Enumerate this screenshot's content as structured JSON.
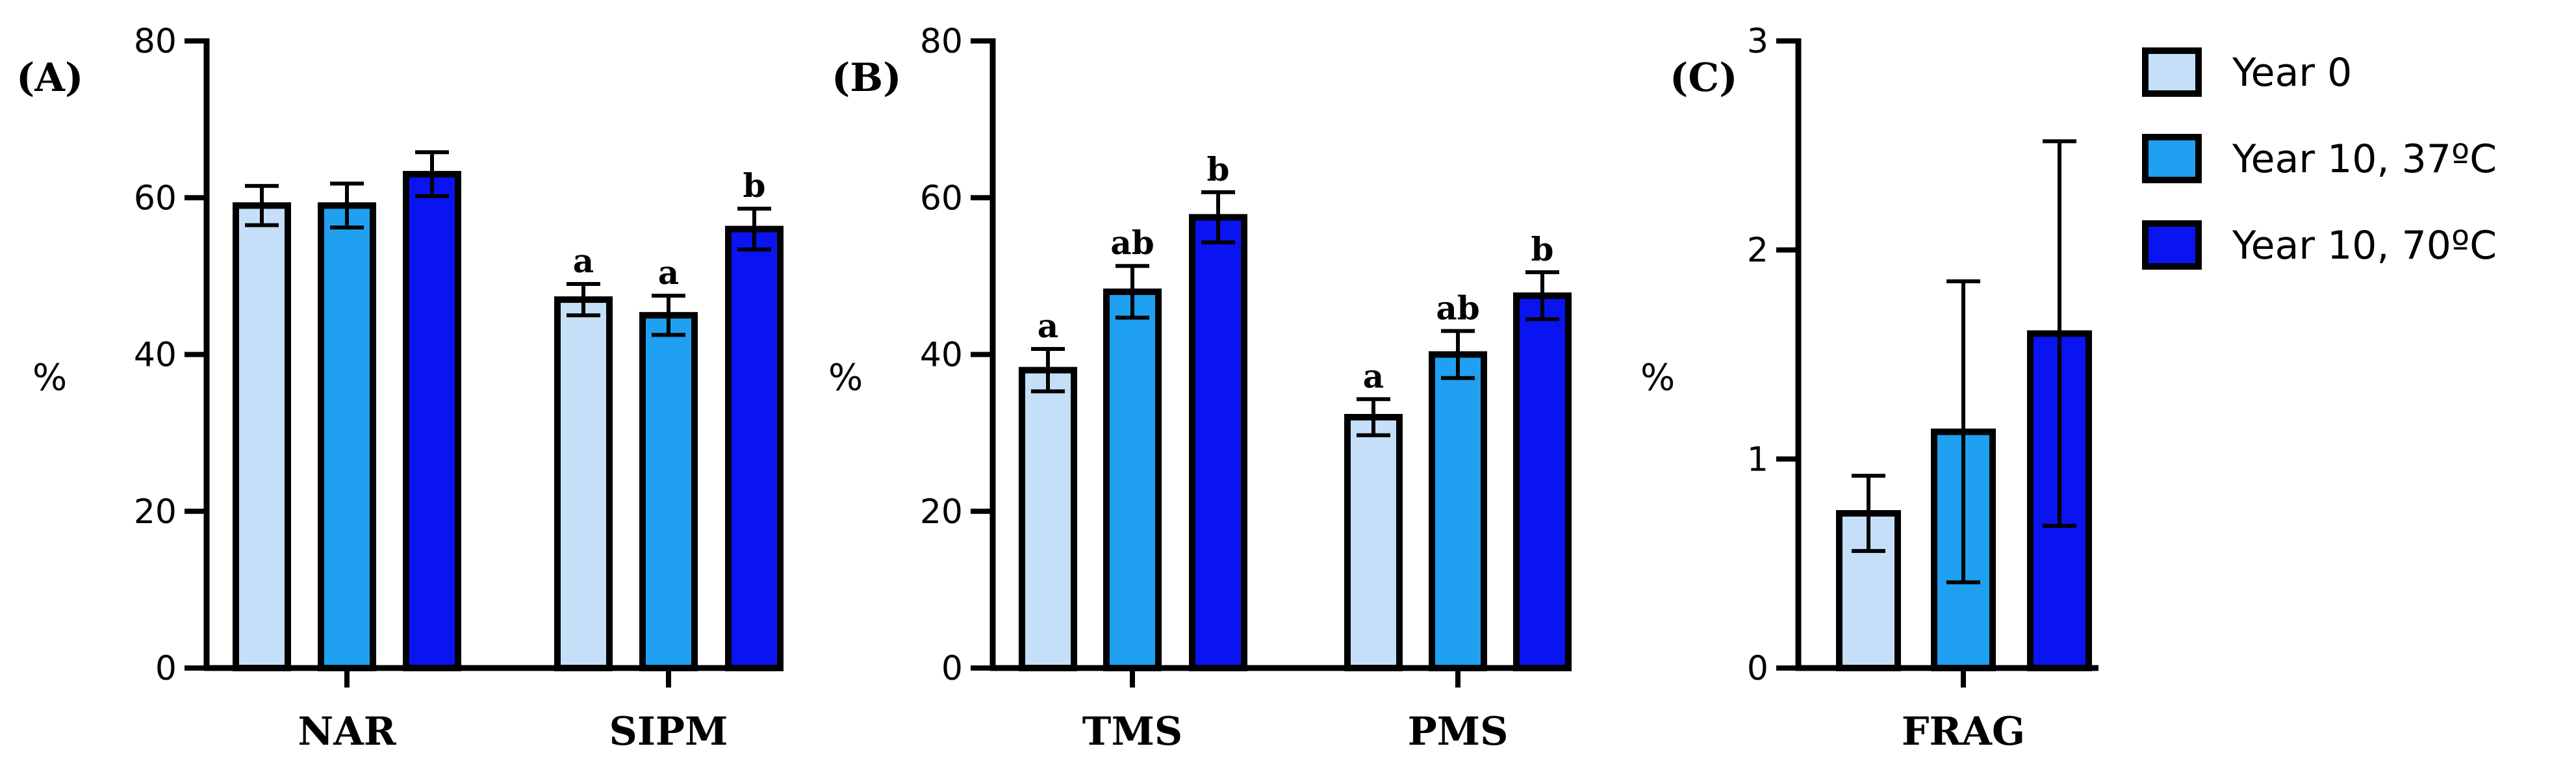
{
  "legend": [
    {
      "name": "Year 0",
      "color": "#c5dff8"
    },
    {
      "name": "Year 10, 37ºC",
      "color": "#1fa0f0"
    },
    {
      "name": "Year 10, 70ºC",
      "color": "#0a14f0"
    }
  ],
  "chart_data": [
    {
      "type": "bar",
      "panel_label": "(A)",
      "ylabel": "%",
      "ylim": [
        0,
        80
      ],
      "yticks": [
        "0",
        "20",
        "40",
        "60",
        "80"
      ],
      "categories": [
        "NAR",
        "SIPM"
      ],
      "series": [
        {
          "name": "Year 0",
          "values": [
            59,
            47
          ],
          "errors": [
            2.5,
            2.0
          ],
          "labels": [
            "",
            "a"
          ]
        },
        {
          "name": "Year 10, 37ºC",
          "values": [
            59,
            45
          ],
          "errors": [
            2.8,
            2.5
          ],
          "labels": [
            "",
            "a"
          ]
        },
        {
          "name": "Year 10, 70ºC",
          "values": [
            63,
            56
          ],
          "errors": [
            2.8,
            2.6
          ],
          "labels": [
            "",
            "b"
          ]
        }
      ]
    },
    {
      "type": "bar",
      "panel_label": "(B)",
      "ylabel": "%",
      "ylim": [
        0,
        80
      ],
      "yticks": [
        "0",
        "20",
        "40",
        "60",
        "80"
      ],
      "categories": [
        "TMS",
        "PMS"
      ],
      "series": [
        {
          "name": "Year 0",
          "values": [
            38,
            32
          ],
          "errors": [
            2.7,
            2.3
          ],
          "labels": [
            "a",
            "a"
          ]
        },
        {
          "name": "Year 10, 37ºC",
          "values": [
            48,
            40
          ],
          "errors": [
            3.3,
            3.0
          ],
          "labels": [
            "ab",
            "ab"
          ]
        },
        {
          "name": "Year 10, 70ºC",
          "values": [
            57.5,
            47.5
          ],
          "errors": [
            3.2,
            3.0
          ],
          "labels": [
            "b",
            "b"
          ]
        }
      ]
    },
    {
      "type": "bar",
      "panel_label": "(C)",
      "ylabel": "%",
      "ylim": [
        0,
        3
      ],
      "yticks": [
        "0",
        "1",
        "2",
        "3"
      ],
      "categories": [
        "FRAG"
      ],
      "series": [
        {
          "name": "Year 0",
          "values": [
            0.74
          ],
          "errors": [
            0.18
          ],
          "labels": [
            ""
          ]
        },
        {
          "name": "Year 10, 37ºC",
          "values": [
            1.13
          ],
          "errors": [
            0.72
          ],
          "labels": [
            ""
          ]
        },
        {
          "name": "Year 10, 70ºC",
          "values": [
            1.6
          ],
          "errors": [
            0.92
          ],
          "labels": [
            ""
          ]
        }
      ]
    }
  ]
}
